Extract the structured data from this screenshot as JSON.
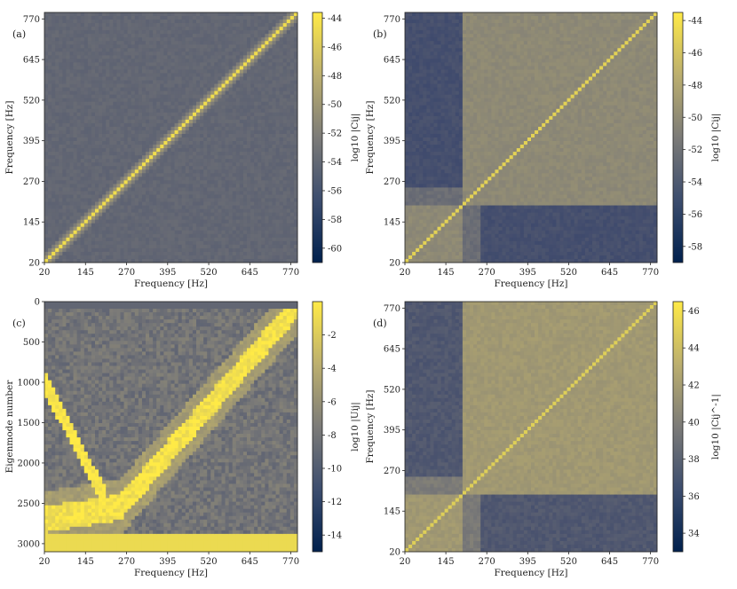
{
  "colors": {
    "cmap_low": "#00204d",
    "cmap_mid": "#7c7b78",
    "cmap_high": "#ffea46",
    "axes": "#222222"
  },
  "chart_data": [
    {
      "type": "heatmap",
      "tag": "(a)",
      "xlabel": "Frequency [Hz]",
      "ylabel": "Frequency [Hz]",
      "colorbar_label": "log10 |Cij|",
      "x_ticks": [
        "20",
        "145",
        "270",
        "395",
        "520",
        "645",
        "770"
      ],
      "y_ticks": [
        "20",
        "145",
        "270",
        "395",
        "520",
        "645",
        "770"
      ],
      "xlim": [
        20,
        790
      ],
      "ylim": [
        20,
        790
      ],
      "colorbar_ticks": [
        "-44",
        "-46",
        "-48",
        "-50",
        "-52",
        "-54",
        "-56",
        "-58",
        "-60"
      ],
      "clim": [
        -61,
        -43.6
      ],
      "pattern": "diagonal_dominant",
      "background": -54,
      "diagonal": -44.5,
      "grid": false
    },
    {
      "type": "heatmap",
      "tag": "(b)",
      "xlabel": "Frequency [Hz]",
      "ylabel": "Frequency [Hz]",
      "colorbar_label": "log10 |Cij|",
      "x_ticks": [
        "20",
        "145",
        "270",
        "395",
        "520",
        "645",
        "770"
      ],
      "y_ticks": [
        "20",
        "145",
        "270",
        "395",
        "520",
        "645",
        "770"
      ],
      "xlim": [
        20,
        790
      ],
      "ylim": [
        20,
        790
      ],
      "colorbar_ticks": [
        "-44",
        "-46",
        "-48",
        "-50",
        "-52",
        "-54",
        "-56",
        "-58"
      ],
      "clim": [
        -59,
        -43.5
      ],
      "pattern": "block_band",
      "background": -50,
      "low_band": -54.5,
      "diagonal": -45,
      "band_edge_hz": 195,
      "grid": false
    },
    {
      "type": "heatmap",
      "tag": "(c)",
      "xlabel": "Frequency [Hz]",
      "ylabel": "Eigenmode number",
      "colorbar_label": "log10 |Uij|",
      "x_ticks": [
        "20",
        "145",
        "270",
        "395",
        "520",
        "645",
        "770"
      ],
      "y_ticks": [
        "0",
        "500",
        "1000",
        "1500",
        "2000",
        "2500",
        "3000"
      ],
      "xlim": [
        20,
        790
      ],
      "ylim": [
        3100,
        0
      ],
      "colorbar_ticks": [
        "-2",
        "-4",
        "-6",
        "-8",
        "-10",
        "-12",
        "-14"
      ],
      "clim": [
        -15,
        0
      ],
      "pattern": "eigenmode_curve",
      "background": -8,
      "curve": -1,
      "grid": false
    },
    {
      "type": "heatmap",
      "tag": "(d)",
      "xlabel": "Frequency [Hz]",
      "ylabel": "Frequency [Hz]",
      "colorbar_label": "log10 |Cij^-1|",
      "x_ticks": [
        "20",
        "145",
        "270",
        "395",
        "520",
        "645",
        "770"
      ],
      "y_ticks": [
        "20",
        "145",
        "270",
        "395",
        "520",
        "645",
        "770"
      ],
      "xlim": [
        20,
        790
      ],
      "ylim": [
        20,
        790
      ],
      "colorbar_ticks": [
        "46",
        "44",
        "42",
        "40",
        "38",
        "36",
        "34"
      ],
      "clim": [
        33,
        46.5
      ],
      "pattern": "block_band",
      "background": 42,
      "low_band": 37.5,
      "diagonal": 45,
      "band_edge_hz": 195,
      "grid": false
    }
  ]
}
